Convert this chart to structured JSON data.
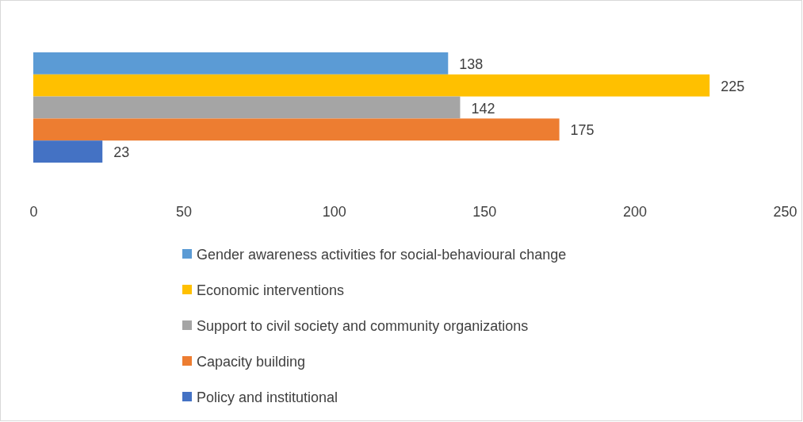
{
  "chart_data": {
    "type": "bar",
    "orientation": "horizontal",
    "categories": [
      null
    ],
    "series": [
      {
        "name": "Gender awareness activities for social-behavioural change",
        "color": "#5b9bd5",
        "values": [
          138
        ]
      },
      {
        "name": "Economic interventions",
        "color": "#ffc000",
        "values": [
          225
        ]
      },
      {
        "name": "Support to civil society and community organizations",
        "color": "#a5a5a5",
        "values": [
          142
        ]
      },
      {
        "name": "Capacity building",
        "color": "#ed7d31",
        "values": [
          175
        ]
      },
      {
        "name": "Policy and institutional",
        "color": "#4472c4",
        "values": [
          23
        ]
      }
    ],
    "xlim": [
      0,
      250
    ],
    "xticks": [
      0,
      50,
      100,
      150,
      200,
      250
    ],
    "data_labels": true,
    "legend": "bottom"
  }
}
